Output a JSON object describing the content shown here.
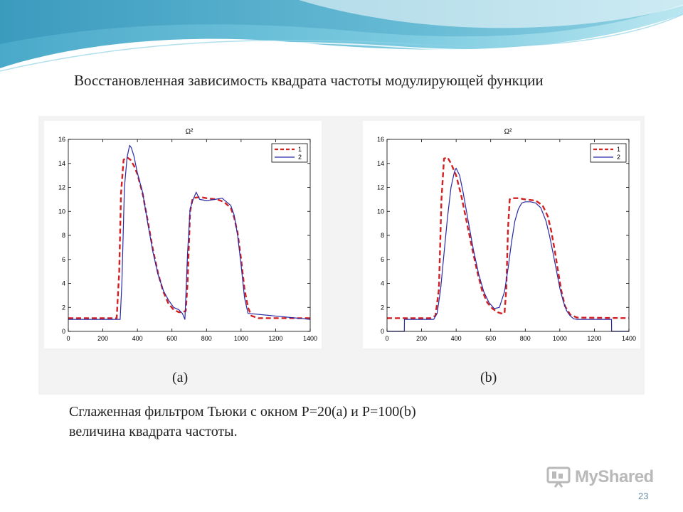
{
  "slide": {
    "title": "Восстановленная зависимость квадрата частоты модулирующей функции",
    "caption_line1": "Сглаженная фильтром Тьюки с окном P=20(a) и P=100(b)",
    "caption_line2": "величина квадрата частоты.",
    "page_number": "23",
    "watermark": "MyShared"
  },
  "chart_data": [
    {
      "type": "line",
      "title": "Ω²",
      "caption": "(a)",
      "xlim": [
        0,
        1400
      ],
      "ylim": [
        0,
        16
      ],
      "x_ticks": [
        0,
        200,
        400,
        600,
        800,
        1000,
        1200,
        1400
      ],
      "y_ticks": [
        0,
        2,
        4,
        6,
        8,
        10,
        12,
        14,
        16
      ],
      "grid": false,
      "legend": "top-right",
      "series": [
        {
          "name": "1",
          "style": "dashed",
          "color": "#d42020",
          "x": [
            0,
            280,
            295,
            305,
            320,
            340,
            360,
            380,
            400,
            430,
            460,
            490,
            520,
            550,
            580,
            610,
            640,
            660,
            680,
            690,
            705,
            720,
            760,
            800,
            860,
            900,
            940,
            960,
            980,
            1000,
            1020,
            1040,
            1060,
            1100,
            1400
          ],
          "y": [
            1.1,
            1.1,
            5,
            11.5,
            14.3,
            14.5,
            14.3,
            13.8,
            13.1,
            11.5,
            9.2,
            6.8,
            4.8,
            3.3,
            2.3,
            1.8,
            1.6,
            1.6,
            1.7,
            4,
            10,
            11.1,
            11.2,
            11.1,
            11.0,
            10.8,
            10.3,
            9.5,
            8.2,
            6,
            3.5,
            2,
            1.3,
            1.1,
            1.1
          ]
        },
        {
          "name": "2",
          "style": "solid",
          "color": "#2a2aa5",
          "x": [
            0,
            300,
            310,
            325,
            340,
            355,
            365,
            380,
            400,
            430,
            460,
            490,
            520,
            550,
            580,
            610,
            640,
            660,
            675,
            690,
            705,
            720,
            740,
            760,
            800,
            850,
            890,
            940,
            960,
            980,
            1000,
            1020,
            1040,
            1400
          ],
          "y": [
            1.0,
            1.0,
            4,
            12,
            14.5,
            15.5,
            15.3,
            14.6,
            13.2,
            11.6,
            9.0,
            6.6,
            4.7,
            3.4,
            2.6,
            2.0,
            1.8,
            1.5,
            1.0,
            6.5,
            10.2,
            10.9,
            11.6,
            11.0,
            10.9,
            11.0,
            11.1,
            10.5,
            9.7,
            8.0,
            5.5,
            2.8,
            1.5,
            1.0
          ]
        }
      ]
    },
    {
      "type": "line",
      "title": "Ω²",
      "caption": "(b)",
      "xlim": [
        0,
        1400
      ],
      "ylim": [
        0,
        16
      ],
      "x_ticks": [
        0,
        200,
        400,
        600,
        800,
        1000,
        1200,
        1400
      ],
      "y_ticks": [
        0,
        2,
        4,
        6,
        8,
        10,
        12,
        14,
        16
      ],
      "grid": false,
      "legend": "top-right",
      "series": [
        {
          "name": "1",
          "style": "dashed",
          "color": "#d42020",
          "x": [
            0,
            250,
            280,
            300,
            315,
            330,
            350,
            370,
            400,
            430,
            460,
            490,
            520,
            550,
            580,
            610,
            640,
            660,
            680,
            690,
            700,
            710,
            720,
            760,
            800,
            860,
            900,
            930,
            950,
            970,
            990,
            1010,
            1030,
            1060,
            1100,
            1400
          ],
          "y": [
            1.1,
            1.1,
            1.3,
            3.5,
            11,
            14.4,
            14.5,
            14.0,
            13.0,
            11.3,
            9.2,
            7.1,
            5.1,
            3.4,
            2.4,
            1.9,
            1.6,
            1.5,
            1.5,
            3.5,
            8.5,
            11.0,
            11.1,
            11.1,
            11.0,
            10.9,
            10.5,
            9.6,
            8.4,
            6.8,
            5.0,
            3.3,
            2.1,
            1.4,
            1.15,
            1.1
          ]
        },
        {
          "name": "2",
          "style": "solid",
          "color": "#2a2aa5",
          "x": [
            0,
            100,
            101,
            270,
            290,
            310,
            330,
            350,
            370,
            390,
            400,
            420,
            440,
            470,
            500,
            530,
            560,
            590,
            620,
            650,
            680,
            700,
            720,
            740,
            760,
            780,
            800,
            830,
            860,
            890,
            920,
            940,
            960,
            980,
            1000,
            1020,
            1040,
            1060,
            1080,
            1100,
            1299,
            1300,
            1400
          ],
          "y": [
            0,
            0,
            1.0,
            1.0,
            1.5,
            3.5,
            6.5,
            9.5,
            12.0,
            13.3,
            13.6,
            13.0,
            11.6,
            9.2,
            6.8,
            4.8,
            3.3,
            2.4,
            1.9,
            2.0,
            3.3,
            5.2,
            7.4,
            9.2,
            10.2,
            10.7,
            10.8,
            10.8,
            10.7,
            10.3,
            9.2,
            8.0,
            6.6,
            5.1,
            3.6,
            2.5,
            1.7,
            1.3,
            1.05,
            1.0,
            1.0,
            0,
            0
          ]
        }
      ]
    }
  ]
}
